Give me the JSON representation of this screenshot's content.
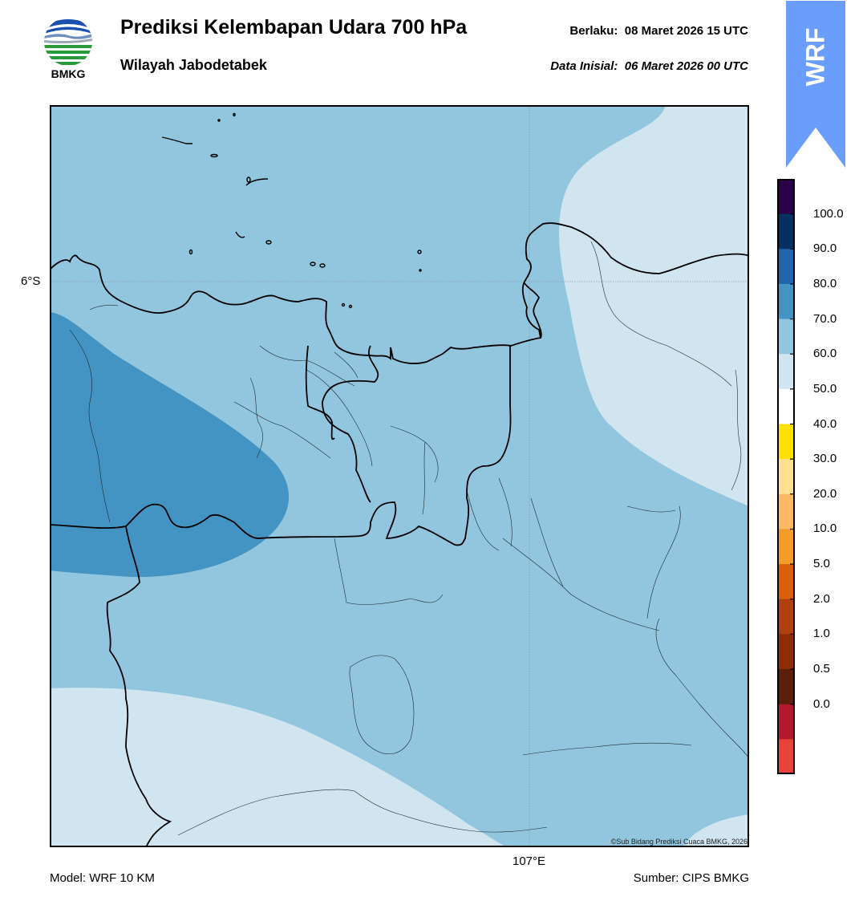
{
  "header": {
    "title": "Prediksi Kelembapan Udara 700 hPa",
    "subtitle": "Wilayah Jabodetabek",
    "valid_label": "Berlaku:",
    "valid_value": "08 Maret 2026 15 UTC",
    "initial_label": "Data Inisial:",
    "initial_value": "06 Maret 2026 00 UTC"
  },
  "logo": {
    "text": "BMKG",
    "icon": "bmkg-logo-icon"
  },
  "badge": {
    "text": "WRF",
    "color": "#6b9efc"
  },
  "map": {
    "lat_label": "6°S",
    "lon_label": "107°E",
    "copyright": "©Sub Bidang Prediksi Cuaca BMKG, 2026",
    "fill_colors": {
      "class_50_60": "#d1e5f0",
      "class_60_70": "#92c5de",
      "class_70_80": "#4393c3"
    }
  },
  "colorbar": {
    "ticks": [
      "100.0",
      "90.0",
      "80.0",
      "70.0",
      "60.0",
      "50.0",
      "40.0",
      "30.0",
      "20.0",
      "10.0",
      "5.0",
      "2.0",
      "1.0",
      "0.5",
      "0.0"
    ],
    "colors_top_to_bottom": [
      "#2d004b",
      "#053061",
      "#2166ac",
      "#4393c3",
      "#92c5de",
      "#d1e5f0",
      "#ffffff",
      "#ffe000",
      "#fee090",
      "#fdb863",
      "#f59b2b",
      "#d95f0e",
      "#b04010",
      "#8c2d04",
      "#5a1e0a",
      "#b2182b",
      "#e8433a"
    ]
  },
  "footer": {
    "model": "Model: WRF 10 KM",
    "source": "Sumber: CIPS BMKG"
  }
}
